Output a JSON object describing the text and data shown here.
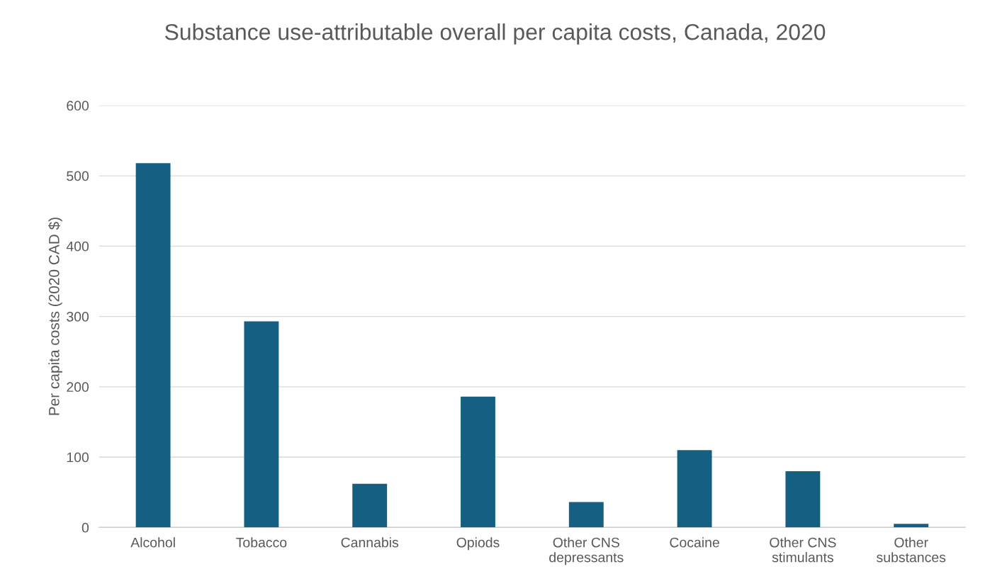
{
  "chart_data": {
    "type": "bar",
    "title": "Substance use-attributable overall per capita costs, Canada, 2020",
    "ylabel": "Per capita costs (2020 CAD $)",
    "categories": [
      "Alcohol",
      "Tobacco",
      "Cannabis",
      "Opiods",
      "Other CNS\ndepressants",
      "Cocaine",
      "Other CNS\nstimulants",
      "Other\nsubstances"
    ],
    "values": [
      518,
      293,
      62,
      186,
      36,
      110,
      80,
      5
    ],
    "color": "#156082",
    "ylim": [
      0,
      600
    ],
    "yticks": [
      0,
      100,
      200,
      300,
      400,
      500,
      600
    ],
    "grid": "y",
    "legend": false
  }
}
